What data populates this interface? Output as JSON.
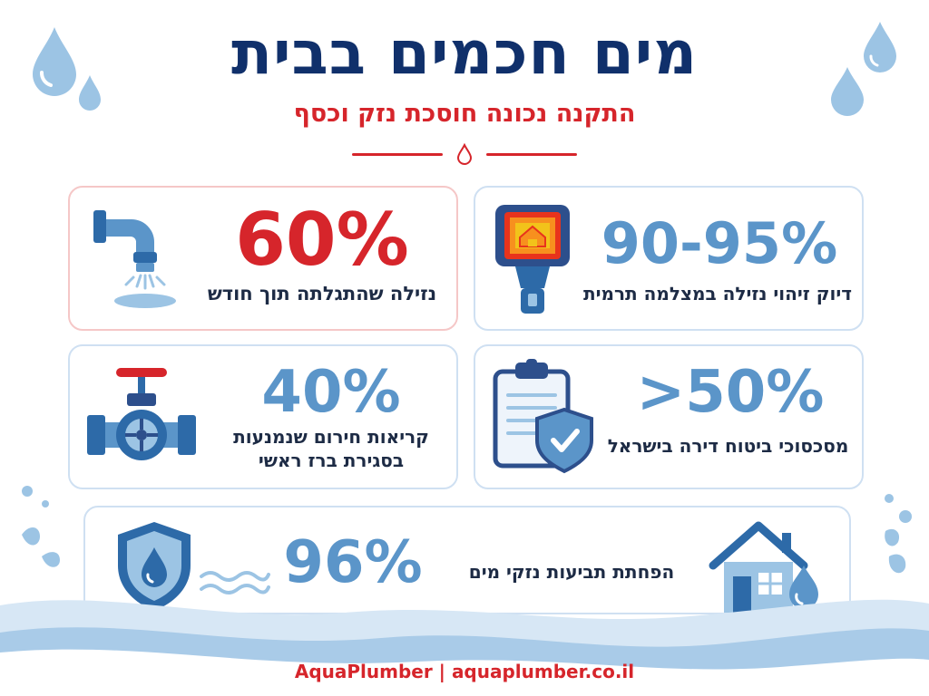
{
  "header": {
    "title": "מים חכמים בבית",
    "subtitle": "התקנה נכונה חוסכת נזק וכסף"
  },
  "stats": [
    {
      "value": "60%",
      "label": "נזילה שהתגלתה תוך חודש",
      "icon": "faucet-icon",
      "color": "#d6252b"
    },
    {
      "value": "90-95%",
      "label": "דיוק זיהוי נזילה במצלמה תרמית",
      "icon": "thermal-camera-icon",
      "color": "#5b95c9"
    },
    {
      "value": "40%",
      "label_lines": [
        "קריאות חירום שנמנעות",
        "בסגירת ברז ראשי"
      ],
      "icon": "main-valve-icon",
      "color": "#5b95c9"
    },
    {
      "value": ">50%",
      "label": "מסכסוכי ביטוח דירה בישראל",
      "icon": "insurance-clipboard-icon",
      "color": "#5b95c9"
    },
    {
      "value": "96%",
      "label": "הפחתת תביעות נזקי מים",
      "icon": "house-water-icon",
      "color": "#5b95c9"
    }
  ],
  "footer": {
    "text": "AquaPlumber | aquaplumber.co.il"
  }
}
